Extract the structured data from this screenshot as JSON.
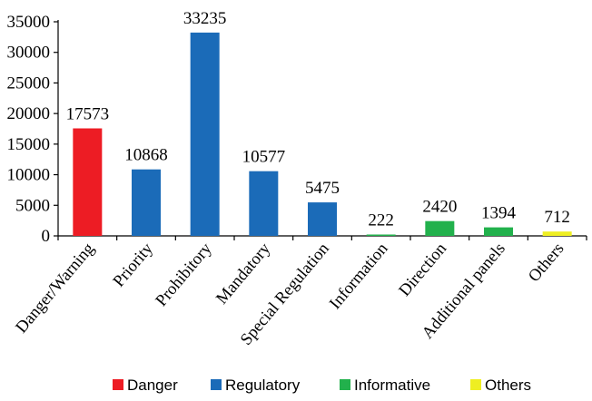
{
  "chart_data": {
    "type": "bar",
    "categories": [
      "Danger/Warning",
      "Priority",
      "Prohibitory",
      "Mandatory",
      "Special Regulation",
      "Information",
      "Direction",
      "Additional panels",
      "Others"
    ],
    "values": [
      17573,
      10868,
      33235,
      10577,
      5475,
      222,
      2420,
      1394,
      712
    ],
    "groups": [
      "Danger",
      "Regulatory",
      "Regulatory",
      "Regulatory",
      "Regulatory",
      "Informative",
      "Informative",
      "Informative",
      "Others"
    ],
    "data_labels": [
      "17573",
      "10868",
      "33235",
      "10577",
      "5475",
      "222",
      "2420",
      "1394",
      "712"
    ],
    "ylim": [
      0,
      35000
    ],
    "yticks": [
      0,
      5000,
      10000,
      15000,
      20000,
      25000,
      30000,
      35000
    ],
    "ytick_labels": [
      "0",
      "5000",
      "10000",
      "15000",
      "20000",
      "25000",
      "30000",
      "35000"
    ],
    "grid": false,
    "legend_position": "bottom",
    "legend": [
      {
        "name": "Danger",
        "color": "#ED1C24"
      },
      {
        "name": "Regulatory",
        "color": "#1B6BB8"
      },
      {
        "name": "Informative",
        "color": "#22B14C"
      },
      {
        "name": "Others",
        "color": "#EEEE22"
      }
    ]
  }
}
